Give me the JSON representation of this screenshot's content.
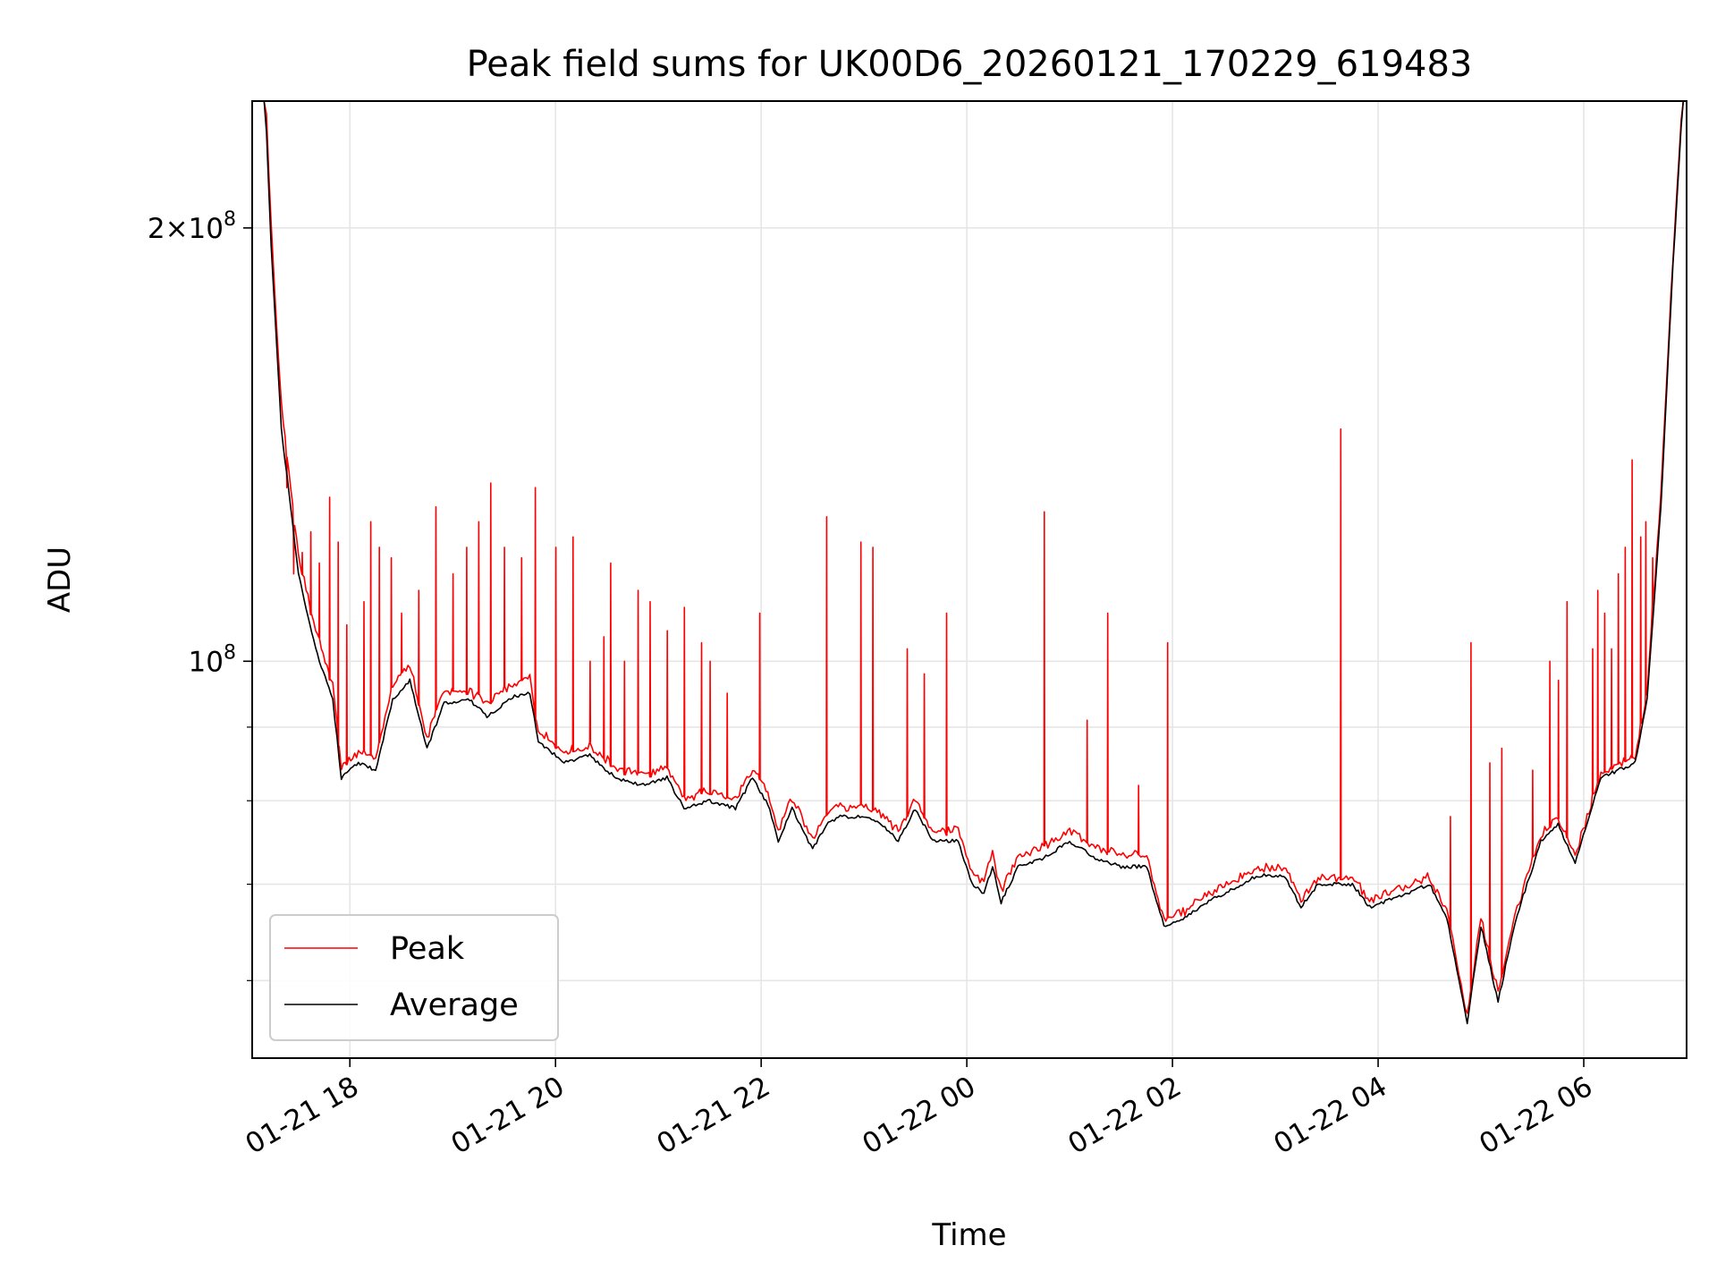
{
  "chart_data": {
    "type": "line",
    "title": "Peak field sums for UK00D6_20260121_170229_619483",
    "xlabel": "Time",
    "ylabel": "ADU",
    "y_scale": "log",
    "x_range": [
      "2026-01-21 17:03",
      "2026-01-22 07:00"
    ],
    "ylim": [
      53000000,
      245000000
    ],
    "x_ticks": [
      {
        "value": "2026-01-21 18:00",
        "label": "01-21 18"
      },
      {
        "value": "2026-01-21 20:00",
        "label": "01-21 20"
      },
      {
        "value": "2026-01-21 22:00",
        "label": "01-21 22"
      },
      {
        "value": "2026-01-22 00:00",
        "label": "01-22 00"
      },
      {
        "value": "2026-01-22 02:00",
        "label": "01-22 02"
      },
      {
        "value": "2026-01-22 04:00",
        "label": "01-22 04"
      },
      {
        "value": "2026-01-22 06:00",
        "label": "01-22 06"
      }
    ],
    "y_major_ticks": [
      {
        "value": 100000000,
        "base": "10",
        "exp": "8"
      },
      {
        "value": 200000000,
        "mantissa": "2",
        "times": "×",
        "base": "10",
        "exp": "8"
      }
    ],
    "y_minor_ticks": [
      60000000,
      70000000,
      80000000,
      90000000
    ],
    "grid": true,
    "legend_position": "lower-left",
    "series": [
      {
        "name": "Peak",
        "color": "#ff0000",
        "baseline": [
          [
            "2026-01-21 17:10",
            260000000
          ],
          [
            "2026-01-21 17:14",
            200000000
          ],
          [
            "2026-01-21 17:20",
            150000000
          ],
          [
            "2026-01-21 17:30",
            118000000
          ],
          [
            "2026-01-21 17:40",
            105000000
          ],
          [
            "2026-01-21 17:50",
            96000000
          ],
          [
            "2026-01-21 17:55",
            84000000
          ],
          [
            "2026-01-21 18:05",
            86000000
          ],
          [
            "2026-01-21 18:15",
            85000000
          ],
          [
            "2026-01-21 18:25",
            96000000
          ],
          [
            "2026-01-21 18:35",
            99000000
          ],
          [
            "2026-01-21 18:45",
            88000000
          ],
          [
            "2026-01-21 18:55",
            95000000
          ],
          [
            "2026-01-21 19:10",
            95000000
          ],
          [
            "2026-01-21 19:20",
            93000000
          ],
          [
            "2026-01-21 19:35",
            96000000
          ],
          [
            "2026-01-21 19:45",
            97000000
          ],
          [
            "2026-01-21 19:50",
            89000000
          ],
          [
            "2026-01-21 20:05",
            86000000
          ],
          [
            "2026-01-21 20:20",
            87000000
          ],
          [
            "2026-01-21 20:35",
            84000000
          ],
          [
            "2026-01-21 20:50",
            83000000
          ],
          [
            "2026-01-21 21:05",
            84000000
          ],
          [
            "2026-01-21 21:15",
            80000000
          ],
          [
            "2026-01-21 21:30",
            81000000
          ],
          [
            "2026-01-21 21:45",
            80000000
          ],
          [
            "2026-01-21 21:55",
            84000000
          ],
          [
            "2026-01-21 22:05",
            80000000
          ],
          [
            "2026-01-21 22:10",
            76000000
          ],
          [
            "2026-01-21 22:18",
            80000000
          ],
          [
            "2026-01-21 22:30",
            75000000
          ],
          [
            "2026-01-21 22:38",
            78000000
          ],
          [
            "2026-01-21 22:45",
            79000000
          ],
          [
            "2026-01-21 23:00",
            79000000
          ],
          [
            "2026-01-21 23:10",
            78000000
          ],
          [
            "2026-01-21 23:20",
            76000000
          ],
          [
            "2026-01-21 23:30",
            80000000
          ],
          [
            "2026-01-21 23:40",
            76000000
          ],
          [
            "2026-01-21 23:55",
            76000000
          ],
          [
            "2026-01-22 00:03",
            71000000
          ],
          [
            "2026-01-22 00:10",
            70000000
          ],
          [
            "2026-01-22 00:15",
            73000000
          ],
          [
            "2026-01-22 00:20",
            69000000
          ],
          [
            "2026-01-22 00:30",
            73000000
          ],
          [
            "2026-01-22 00:45",
            74000000
          ],
          [
            "2026-01-22 01:00",
            76000000
          ],
          [
            "2026-01-22 01:15",
            74000000
          ],
          [
            "2026-01-22 01:30",
            73000000
          ],
          [
            "2026-01-22 01:45",
            73000000
          ],
          [
            "2026-01-22 01:55",
            66000000
          ],
          [
            "2026-01-22 02:05",
            66500000
          ],
          [
            "2026-01-22 02:20",
            68500000
          ],
          [
            "2026-01-22 02:35",
            70000000
          ],
          [
            "2026-01-22 02:50",
            71500000
          ],
          [
            "2026-01-22 03:05",
            71500000
          ],
          [
            "2026-01-22 03:15",
            68000000
          ],
          [
            "2026-01-22 03:25",
            70500000
          ],
          [
            "2026-01-22 03:45",
            70500000
          ],
          [
            "2026-01-22 03:55",
            68000000
          ],
          [
            "2026-01-22 04:10",
            69000000
          ],
          [
            "2026-01-22 04:30",
            70500000
          ],
          [
            "2026-01-22 04:40",
            67000000
          ],
          [
            "2026-01-22 04:52",
            56500000
          ],
          [
            "2026-01-22 05:00",
            66000000
          ],
          [
            "2026-01-22 05:10",
            58500000
          ],
          [
            "2026-01-22 05:20",
            66500000
          ],
          [
            "2026-01-22 05:35",
            75500000
          ],
          [
            "2026-01-22 05:45",
            77500000
          ],
          [
            "2026-01-22 05:55",
            73000000
          ],
          [
            "2026-01-22 06:10",
            83500000
          ],
          [
            "2026-01-22 06:20",
            84500000
          ],
          [
            "2026-01-22 06:30",
            85500000
          ],
          [
            "2026-01-22 06:37",
            95000000
          ],
          [
            "2026-01-22 06:45",
            130000000
          ],
          [
            "2026-01-22 06:52",
            190000000
          ],
          [
            "2026-01-22 06:58",
            250000000
          ]
        ],
        "spikes": [
          [
            "2026-01-21 17:23",
            132000000
          ],
          [
            "2026-01-21 17:27",
            115000000
          ],
          [
            "2026-01-21 17:32",
            119000000
          ],
          [
            "2026-01-21 17:37",
            123000000
          ],
          [
            "2026-01-21 17:42",
            117000000
          ],
          [
            "2026-01-21 17:48",
            130000000
          ],
          [
            "2026-01-21 17:53",
            121000000
          ],
          [
            "2026-01-21 17:58",
            106000000
          ],
          [
            "2026-01-21 18:08",
            110000000
          ],
          [
            "2026-01-21 18:12",
            125000000
          ],
          [
            "2026-01-21 18:17",
            120000000
          ],
          [
            "2026-01-21 18:24",
            118000000
          ],
          [
            "2026-01-21 18:30",
            108000000
          ],
          [
            "2026-01-21 18:40",
            112000000
          ],
          [
            "2026-01-21 18:50",
            128000000
          ],
          [
            "2026-01-21 19:00",
            115000000
          ],
          [
            "2026-01-21 19:08",
            120000000
          ],
          [
            "2026-01-21 19:15",
            125000000
          ],
          [
            "2026-01-21 19:22",
            133000000
          ],
          [
            "2026-01-21 19:30",
            120000000
          ],
          [
            "2026-01-21 19:40",
            118000000
          ],
          [
            "2026-01-21 19:48",
            132000000
          ],
          [
            "2026-01-21 20:00",
            120000000
          ],
          [
            "2026-01-21 20:10",
            122000000
          ],
          [
            "2026-01-21 20:20",
            100000000
          ],
          [
            "2026-01-21 20:28",
            104000000
          ],
          [
            "2026-01-21 20:32",
            117000000
          ],
          [
            "2026-01-21 20:40",
            100000000
          ],
          [
            "2026-01-21 20:48",
            112000000
          ],
          [
            "2026-01-21 20:55",
            110000000
          ],
          [
            "2026-01-21 21:05",
            105000000
          ],
          [
            "2026-01-21 21:15",
            109000000
          ],
          [
            "2026-01-21 21:25",
            103000000
          ],
          [
            "2026-01-21 21:30",
            100000000
          ],
          [
            "2026-01-21 21:40",
            95000000
          ],
          [
            "2026-01-21 21:59",
            108000000
          ],
          [
            "2026-01-21 22:38",
            126000000
          ],
          [
            "2026-01-21 22:58",
            121000000
          ],
          [
            "2026-01-21 23:05",
            120000000
          ],
          [
            "2026-01-21 23:25",
            102000000
          ],
          [
            "2026-01-21 23:35",
            98000000
          ],
          [
            "2026-01-21 23:48",
            108000000
          ],
          [
            "2026-01-22 00:45",
            127000000
          ],
          [
            "2026-01-22 01:10",
            91000000
          ],
          [
            "2026-01-22 01:22",
            108000000
          ],
          [
            "2026-01-22 01:40",
            82000000
          ],
          [
            "2026-01-22 01:57",
            103000000
          ],
          [
            "2026-01-22 03:38",
            145000000
          ],
          [
            "2026-01-22 04:42",
            78000000
          ],
          [
            "2026-01-22 04:54",
            103000000
          ],
          [
            "2026-01-22 05:05",
            85000000
          ],
          [
            "2026-01-22 05:12",
            87000000
          ],
          [
            "2026-01-22 05:30",
            84000000
          ],
          [
            "2026-01-22 05:40",
            100000000
          ],
          [
            "2026-01-22 05:45",
            97000000
          ],
          [
            "2026-01-22 05:50",
            110000000
          ],
          [
            "2026-01-22 06:05",
            102000000
          ],
          [
            "2026-01-22 06:08",
            112000000
          ],
          [
            "2026-01-22 06:12",
            108000000
          ],
          [
            "2026-01-22 06:16",
            102000000
          ],
          [
            "2026-01-22 06:20",
            115000000
          ],
          [
            "2026-01-22 06:24",
            120000000
          ],
          [
            "2026-01-22 06:28",
            138000000
          ],
          [
            "2026-01-22 06:33",
            122000000
          ],
          [
            "2026-01-22 06:36",
            125000000
          ],
          [
            "2026-01-22 06:40",
            118000000
          ]
        ]
      },
      {
        "name": "Average",
        "color": "#000000",
        "baseline": [
          [
            "2026-01-21 17:10",
            255000000
          ],
          [
            "2026-01-21 17:14",
            195000000
          ],
          [
            "2026-01-21 17:20",
            145000000
          ],
          [
            "2026-01-21 17:30",
            115000000
          ],
          [
            "2026-01-21 17:40",
            102000000
          ],
          [
            "2026-01-21 17:50",
            94000000
          ],
          [
            "2026-01-21 17:55",
            83000000
          ],
          [
            "2026-01-21 18:05",
            85000000
          ],
          [
            "2026-01-21 18:15",
            84000000
          ],
          [
            "2026-01-21 18:25",
            94000000
          ],
          [
            "2026-01-21 18:35",
            97000000
          ],
          [
            "2026-01-21 18:45",
            87000000
          ],
          [
            "2026-01-21 18:55",
            93500000
          ],
          [
            "2026-01-21 19:10",
            94000000
          ],
          [
            "2026-01-21 19:20",
            91500000
          ],
          [
            "2026-01-21 19:35",
            94500000
          ],
          [
            "2026-01-21 19:45",
            95000000
          ],
          [
            "2026-01-21 19:50",
            88000000
          ],
          [
            "2026-01-21 20:05",
            85000000
          ],
          [
            "2026-01-21 20:20",
            86000000
          ],
          [
            "2026-01-21 20:35",
            83000000
          ],
          [
            "2026-01-21 20:50",
            82000000
          ],
          [
            "2026-01-21 21:05",
            83000000
          ],
          [
            "2026-01-21 21:15",
            79000000
          ],
          [
            "2026-01-21 21:30",
            80000000
          ],
          [
            "2026-01-21 21:45",
            79000000
          ],
          [
            "2026-01-21 21:55",
            83000000
          ],
          [
            "2026-01-21 22:05",
            79000000
          ],
          [
            "2026-01-21 22:10",
            75000000
          ],
          [
            "2026-01-21 22:18",
            79000000
          ],
          [
            "2026-01-21 22:30",
            74000000
          ],
          [
            "2026-01-21 22:38",
            77000000
          ],
          [
            "2026-01-21 22:45",
            78000000
          ],
          [
            "2026-01-21 23:00",
            78000000
          ],
          [
            "2026-01-21 23:10",
            77000000
          ],
          [
            "2026-01-21 23:20",
            75000000
          ],
          [
            "2026-01-21 23:30",
            79000000
          ],
          [
            "2026-01-21 23:40",
            75000000
          ],
          [
            "2026-01-21 23:55",
            75000000
          ],
          [
            "2026-01-22 00:03",
            70000000
          ],
          [
            "2026-01-22 00:10",
            69000000
          ],
          [
            "2026-01-22 00:15",
            72000000
          ],
          [
            "2026-01-22 00:20",
            68000000
          ],
          [
            "2026-01-22 00:30",
            72000000
          ],
          [
            "2026-01-22 00:45",
            73000000
          ],
          [
            "2026-01-22 01:00",
            75000000
          ],
          [
            "2026-01-22 01:15",
            73000000
          ],
          [
            "2026-01-22 01:30",
            72000000
          ],
          [
            "2026-01-22 01:45",
            72000000
          ],
          [
            "2026-01-22 01:55",
            65500000
          ],
          [
            "2026-01-22 02:05",
            66000000
          ],
          [
            "2026-01-22 02:20",
            68000000
          ],
          [
            "2026-01-22 02:35",
            69500000
          ],
          [
            "2026-01-22 02:50",
            71000000
          ],
          [
            "2026-01-22 03:05",
            71000000
          ],
          [
            "2026-01-22 03:15",
            67500000
          ],
          [
            "2026-01-22 03:25",
            70000000
          ],
          [
            "2026-01-22 03:45",
            70000000
          ],
          [
            "2026-01-22 03:55",
            67500000
          ],
          [
            "2026-01-22 04:10",
            68500000
          ],
          [
            "2026-01-22 04:30",
            70000000
          ],
          [
            "2026-01-22 04:40",
            66500000
          ],
          [
            "2026-01-22 04:52",
            56000000
          ],
          [
            "2026-01-22 05:00",
            65500000
          ],
          [
            "2026-01-22 05:10",
            58000000
          ],
          [
            "2026-01-22 05:20",
            66000000
          ],
          [
            "2026-01-22 05:35",
            75000000
          ],
          [
            "2026-01-22 05:45",
            77000000
          ],
          [
            "2026-01-22 05:55",
            72500000
          ],
          [
            "2026-01-22 06:10",
            83000000
          ],
          [
            "2026-01-22 06:20",
            84000000
          ],
          [
            "2026-01-22 06:30",
            85000000
          ],
          [
            "2026-01-22 06:37",
            94000000
          ],
          [
            "2026-01-22 06:45",
            128000000
          ],
          [
            "2026-01-22 06:52",
            188000000
          ],
          [
            "2026-01-22 06:58",
            248000000
          ]
        ]
      }
    ]
  }
}
